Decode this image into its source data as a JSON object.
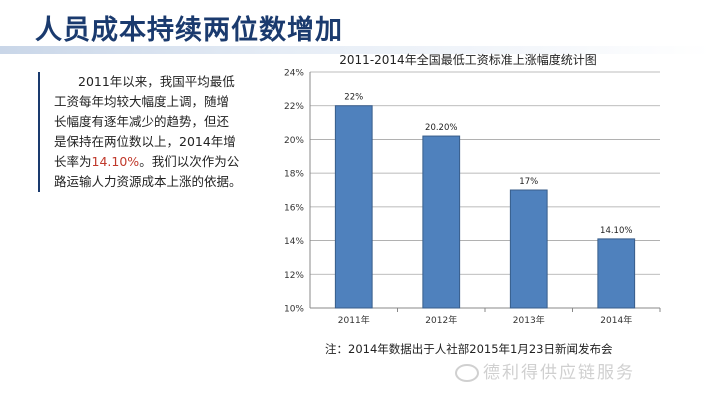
{
  "slide": {
    "title": "人员成本持续两位数增加"
  },
  "text_block": {
    "line1": "2011年以来，我国平均最低",
    "line2": "工资每年均较大幅度上调，随增",
    "line3": "长幅度有逐年减少的趋势，但还",
    "line4": "是保持在两位数以上，2014年增",
    "line5_pre": "长率为",
    "line5_highlight": "14.10%",
    "line5_post": "。我们以次作为公",
    "line6": "路运输人力资源成本上涨的依据。"
  },
  "note": "注：2014年数据出于人社部2015年1月23日新闻发布会",
  "watermark": "德利得供应链服务",
  "chart_data": {
    "type": "bar",
    "title": "2011-2014年全国最低工资标准上涨幅度统计图",
    "categories": [
      "2011年",
      "2012年",
      "2013年",
      "2014年"
    ],
    "values": [
      22,
      20.2,
      17,
      14.1
    ],
    "data_labels": [
      "22%",
      "20.20%",
      "17%",
      "14.10%"
    ],
    "y_ticks": [
      "10%",
      "12%",
      "14%",
      "16%",
      "18%",
      "20%",
      "22%",
      "24%"
    ],
    "ylim": [
      10,
      24
    ],
    "grid": true,
    "bar_color": "#4f81bd",
    "bar_edge_color": "#385d8a"
  }
}
